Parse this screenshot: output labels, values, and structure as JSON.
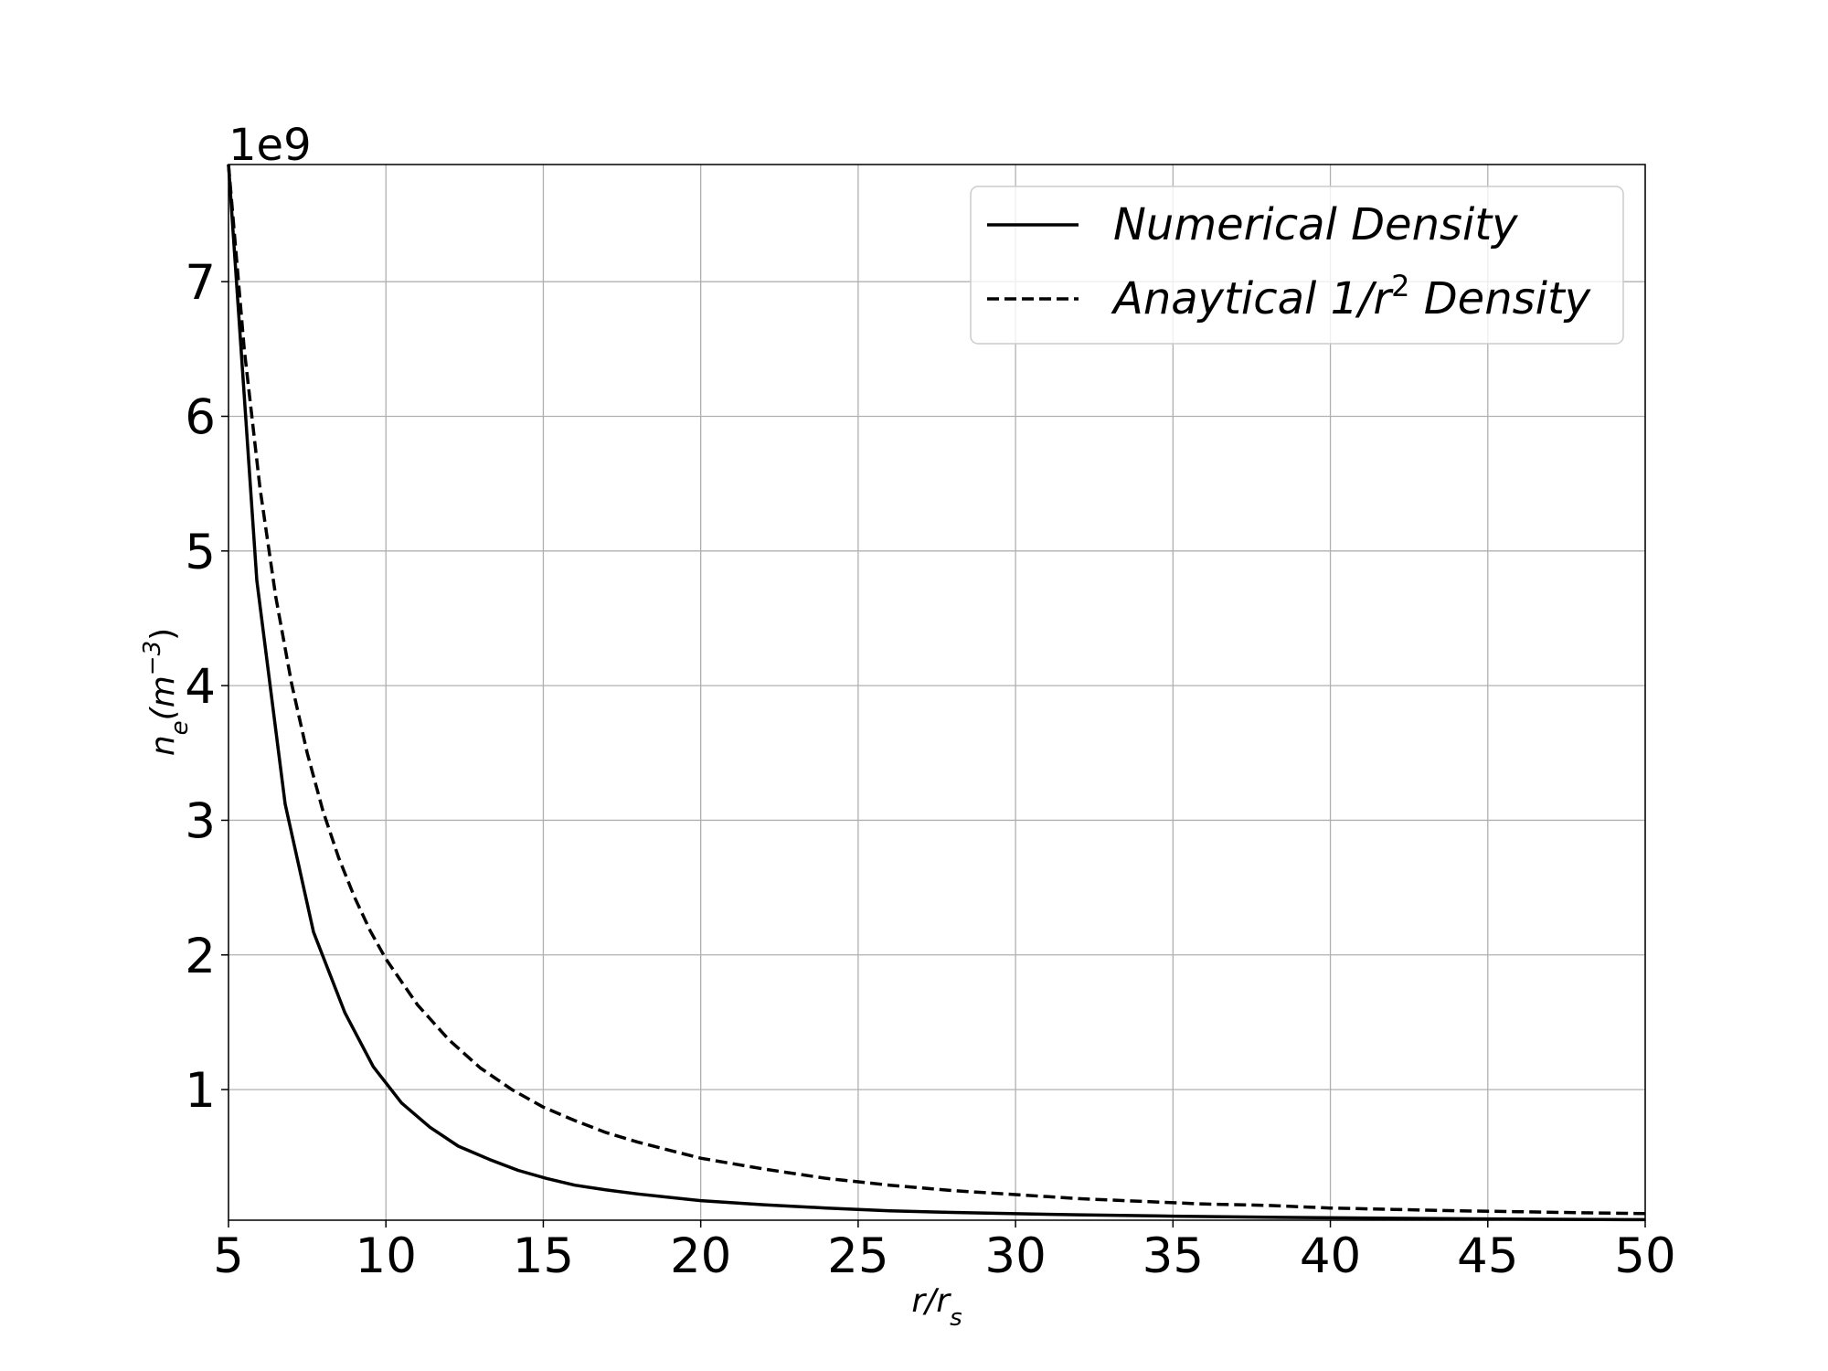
{
  "chart_data": {
    "type": "line",
    "xlabel": "r/r_s",
    "ylabel": "n_e(m^-3)",
    "y_offset_label": "1e9",
    "xlim": [
      5,
      50
    ],
    "ylim": [
      0.03,
      7.87
    ],
    "x_ticks": [
      "5",
      "10",
      "15",
      "20",
      "25",
      "30",
      "35",
      "40",
      "45",
      "50"
    ],
    "y_ticks": [
      "1",
      "2",
      "3",
      "4",
      "5",
      "6",
      "7"
    ],
    "grid": true,
    "legend_position": "top-right",
    "legend": [
      {
        "name": "Numerical Density",
        "style": "solid"
      },
      {
        "name_parts": [
          "Anaytical 1/r",
          "2",
          " Density"
        ],
        "style": "dashed"
      }
    ],
    "series": [
      {
        "name": "Numerical Density",
        "style": "solid",
        "color": "#000000",
        "x": [
          5.0,
          5.9,
          6.8,
          7.7,
          8.7,
          9.6,
          10.5,
          11.4,
          12.3,
          13.3,
          14.2,
          15.1,
          16.0,
          17.0,
          18.0,
          19.0,
          20.0,
          22.0,
          24.0,
          26.0,
          28.0,
          30.0,
          32.0,
          35.0,
          38.0,
          41.0,
          44.0,
          47.0,
          50.0
        ],
        "y": [
          7.87,
          4.78,
          3.12,
          2.17,
          1.57,
          1.17,
          0.9,
          0.72,
          0.58,
          0.48,
          0.4,
          0.34,
          0.29,
          0.255,
          0.225,
          0.2,
          0.175,
          0.145,
          0.12,
          0.1,
          0.088,
          0.078,
          0.07,
          0.06,
          0.052,
          0.046,
          0.041,
          0.037,
          0.034
        ]
      },
      {
        "name": "Anaytical 1/r^2 Density",
        "style": "dashed",
        "color": "#000000",
        "x": [
          5.0,
          5.5,
          6.0,
          6.5,
          7.0,
          7.5,
          8.0,
          8.5,
          9.0,
          9.5,
          10.0,
          11.0,
          12.0,
          13.0,
          14.0,
          15.0,
          16.0,
          17.0,
          18.0,
          19.0,
          20.0,
          22.0,
          24.0,
          26.0,
          28.0,
          30.0,
          32.0,
          34.0,
          36.0,
          38.0,
          40.0,
          42.0,
          44.0,
          46.0,
          48.0,
          50.0
        ],
        "y": [
          7.87,
          6.5,
          5.47,
          4.66,
          4.02,
          3.5,
          3.07,
          2.72,
          2.43,
          2.18,
          1.97,
          1.63,
          1.37,
          1.16,
          1.0,
          0.87,
          0.77,
          0.68,
          0.61,
          0.55,
          0.49,
          0.41,
          0.34,
          0.29,
          0.25,
          0.22,
          0.19,
          0.17,
          0.15,
          0.14,
          0.12,
          0.11,
          0.1,
          0.093,
          0.085,
          0.079
        ]
      }
    ]
  }
}
